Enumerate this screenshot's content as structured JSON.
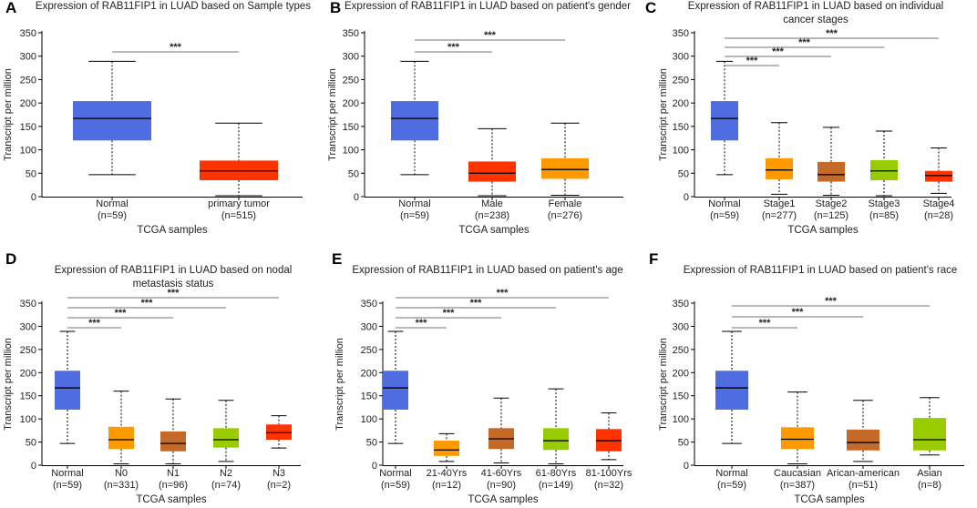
{
  "figure": {
    "ylabel": "Transcript per million",
    "xlabel": "TCGA samples",
    "sig_label": "***"
  },
  "chart_data": [
    {
      "id": "A",
      "type": "box",
      "title": [
        "Expression of RAB11FIP1 in LUAD based on Sample types"
      ],
      "ylim": [
        0,
        350
      ],
      "yticks": [
        0,
        50,
        100,
        150,
        200,
        250,
        300,
        350
      ],
      "ylabel": "Transcript per million",
      "xlabel": "TCGA samples",
      "groups": [
        {
          "name": "Normal",
          "n": "(n=59)",
          "color": "#4f6de0",
          "min": 47,
          "q1": 120,
          "median": 167,
          "q3": 204,
          "max": 289
        },
        {
          "name": "primary tumor",
          "n": "(n=515)",
          "color": "#ff3300",
          "min": 2,
          "q1": 35,
          "median": 55,
          "q3": 77,
          "max": 157
        }
      ],
      "significance": [
        {
          "from": 0,
          "to": 1,
          "label": "***"
        }
      ]
    },
    {
      "id": "B",
      "type": "box",
      "title": [
        "Expression of RAB11FIP1 in LUAD based on patient's gender"
      ],
      "ylim": [
        0,
        350
      ],
      "yticks": [
        0,
        50,
        100,
        150,
        200,
        250,
        300,
        350
      ],
      "ylabel": "Transcript per million",
      "xlabel": "TCGA samples",
      "groups": [
        {
          "name": "Normal",
          "n": "(n=59)",
          "color": "#4f6de0",
          "min": 47,
          "q1": 120,
          "median": 167,
          "q3": 204,
          "max": 289
        },
        {
          "name": "Male",
          "n": "(n=238)",
          "color": "#ff3300",
          "min": 2,
          "q1": 32,
          "median": 50,
          "q3": 75,
          "max": 145
        },
        {
          "name": "Female",
          "n": "(n=276)",
          "color": "#ff9900",
          "min": 3,
          "q1": 38,
          "median": 58,
          "q3": 82,
          "max": 157
        }
      ],
      "significance": [
        {
          "from": 0,
          "to": 1,
          "label": "***"
        },
        {
          "from": 0,
          "to": 2,
          "label": "***"
        }
      ]
    },
    {
      "id": "C",
      "type": "box",
      "title": [
        "Expression of RAB11FIP1 in LUAD based on individual",
        "cancer stages"
      ],
      "ylim": [
        0,
        350
      ],
      "yticks": [
        0,
        50,
        100,
        150,
        200,
        250,
        300,
        350
      ],
      "ylabel": "Transcript per million",
      "xlabel": "TCGA samples",
      "groups": [
        {
          "name": "Normal",
          "n": "(n=59)",
          "color": "#4f6de0",
          "min": 47,
          "q1": 120,
          "median": 167,
          "q3": 204,
          "max": 289
        },
        {
          "name": "Stage1",
          "n": "(n=277)",
          "color": "#ff9900",
          "min": 5,
          "q1": 37,
          "median": 57,
          "q3": 82,
          "max": 158
        },
        {
          "name": "Stage2",
          "n": "(n=125)",
          "color": "#c46a28",
          "min": 3,
          "q1": 32,
          "median": 47,
          "q3": 74,
          "max": 148
        },
        {
          "name": "Stage3",
          "n": "(n=85)",
          "color": "#99cc00",
          "min": 2,
          "q1": 35,
          "median": 55,
          "q3": 78,
          "max": 140
        },
        {
          "name": "Stage4",
          "n": "(n=28)",
          "color": "#ff3300",
          "min": 7,
          "q1": 32,
          "median": 45,
          "q3": 55,
          "max": 104
        }
      ],
      "significance": [
        {
          "from": 0,
          "to": 1,
          "label": "***"
        },
        {
          "from": 0,
          "to": 2,
          "label": "***"
        },
        {
          "from": 0,
          "to": 3,
          "label": "***"
        },
        {
          "from": 0,
          "to": 4,
          "label": "***"
        }
      ]
    },
    {
      "id": "D",
      "type": "box",
      "title": [
        "Expression of RAB11FIP1 in LUAD based on nodal",
        "metastasis status"
      ],
      "ylim": [
        0,
        350
      ],
      "yticks": [
        0,
        50,
        100,
        150,
        200,
        250,
        300,
        350
      ],
      "ylabel": "Transcript per million",
      "xlabel": "TCGA samples",
      "groups": [
        {
          "name": "Normal",
          "n": "(n=59)",
          "color": "#4f6de0",
          "min": 47,
          "q1": 120,
          "median": 167,
          "q3": 204,
          "max": 289
        },
        {
          "name": "N0",
          "n": "(n=331)",
          "color": "#ff9900",
          "min": 3,
          "q1": 35,
          "median": 55,
          "q3": 83,
          "max": 160
        },
        {
          "name": "N1",
          "n": "(n=96)",
          "color": "#c46a28",
          "min": 3,
          "q1": 30,
          "median": 47,
          "q3": 73,
          "max": 143
        },
        {
          "name": "N2",
          "n": "(n=74)",
          "color": "#99cc00",
          "min": 8,
          "q1": 38,
          "median": 55,
          "q3": 80,
          "max": 140
        },
        {
          "name": "N3",
          "n": "(n=2)",
          "color": "#ff3300",
          "min": 37,
          "q1": 55,
          "median": 70,
          "q3": 88,
          "max": 107
        }
      ],
      "significance": [
        {
          "from": 0,
          "to": 1,
          "label": "***"
        },
        {
          "from": 0,
          "to": 2,
          "label": "***"
        },
        {
          "from": 0,
          "to": 3,
          "label": "***"
        },
        {
          "from": 0,
          "to": 4,
          "label": "***"
        }
      ]
    },
    {
      "id": "E",
      "type": "box",
      "title": [
        "Expression of RAB11FIP1 in LUAD based on patient's age"
      ],
      "ylim": [
        0,
        350
      ],
      "yticks": [
        0,
        50,
        100,
        150,
        200,
        250,
        300,
        350
      ],
      "ylabel": "Transcript per million",
      "xlabel": "TCGA samples",
      "groups": [
        {
          "name": "Normal",
          "n": "(n=59)",
          "color": "#4f6de0",
          "min": 47,
          "q1": 120,
          "median": 167,
          "q3": 204,
          "max": 289
        },
        {
          "name": "21-40Yrs",
          "n": "(n=12)",
          "color": "#ff9900",
          "min": 8,
          "q1": 20,
          "median": 33,
          "q3": 53,
          "max": 68
        },
        {
          "name": "41-60Yrs",
          "n": "(n=90)",
          "color": "#c46a28",
          "min": 5,
          "q1": 35,
          "median": 57,
          "q3": 80,
          "max": 145
        },
        {
          "name": "61-80Yrs",
          "n": "(n=149)",
          "color": "#99cc00",
          "min": 3,
          "q1": 33,
          "median": 53,
          "q3": 80,
          "max": 165
        },
        {
          "name": "81-100Yrs",
          "n": "(n=32)",
          "color": "#ff3300",
          "min": 12,
          "q1": 30,
          "median": 53,
          "q3": 78,
          "max": 113
        }
      ],
      "significance": [
        {
          "from": 0,
          "to": 1,
          "label": "***"
        },
        {
          "from": 0,
          "to": 2,
          "label": "***"
        },
        {
          "from": 0,
          "to": 3,
          "label": "***"
        },
        {
          "from": 0,
          "to": 4,
          "label": "***"
        }
      ]
    },
    {
      "id": "F",
      "type": "box",
      "title": [
        "Expression of RAB11FIP1 in LUAD based on patient's race"
      ],
      "ylim": [
        0,
        350
      ],
      "yticks": [
        0,
        50,
        100,
        150,
        200,
        250,
        300,
        350
      ],
      "ylabel": "Transcript per million",
      "xlabel": "TCGA samples",
      "groups": [
        {
          "name": "Normal",
          "n": "(n=59)",
          "color": "#4f6de0",
          "min": 47,
          "q1": 120,
          "median": 167,
          "q3": 204,
          "max": 289
        },
        {
          "name": "Caucasian",
          "n": "(n=387)",
          "color": "#ff9900",
          "min": 3,
          "q1": 35,
          "median": 56,
          "q3": 82,
          "max": 158
        },
        {
          "name": "Arican-american",
          "n": "(n=51)",
          "color": "#c46a28",
          "min": 8,
          "q1": 32,
          "median": 49,
          "q3": 77,
          "max": 140
        },
        {
          "name": "Asian",
          "n": "(n=8)",
          "color": "#99cc00",
          "min": 22,
          "q1": 32,
          "median": 55,
          "q3": 102,
          "max": 146
        }
      ],
      "significance": [
        {
          "from": 0,
          "to": 1,
          "label": "***"
        },
        {
          "from": 0,
          "to": 2,
          "label": "***"
        },
        {
          "from": 0,
          "to": 3,
          "label": "***"
        }
      ]
    }
  ]
}
